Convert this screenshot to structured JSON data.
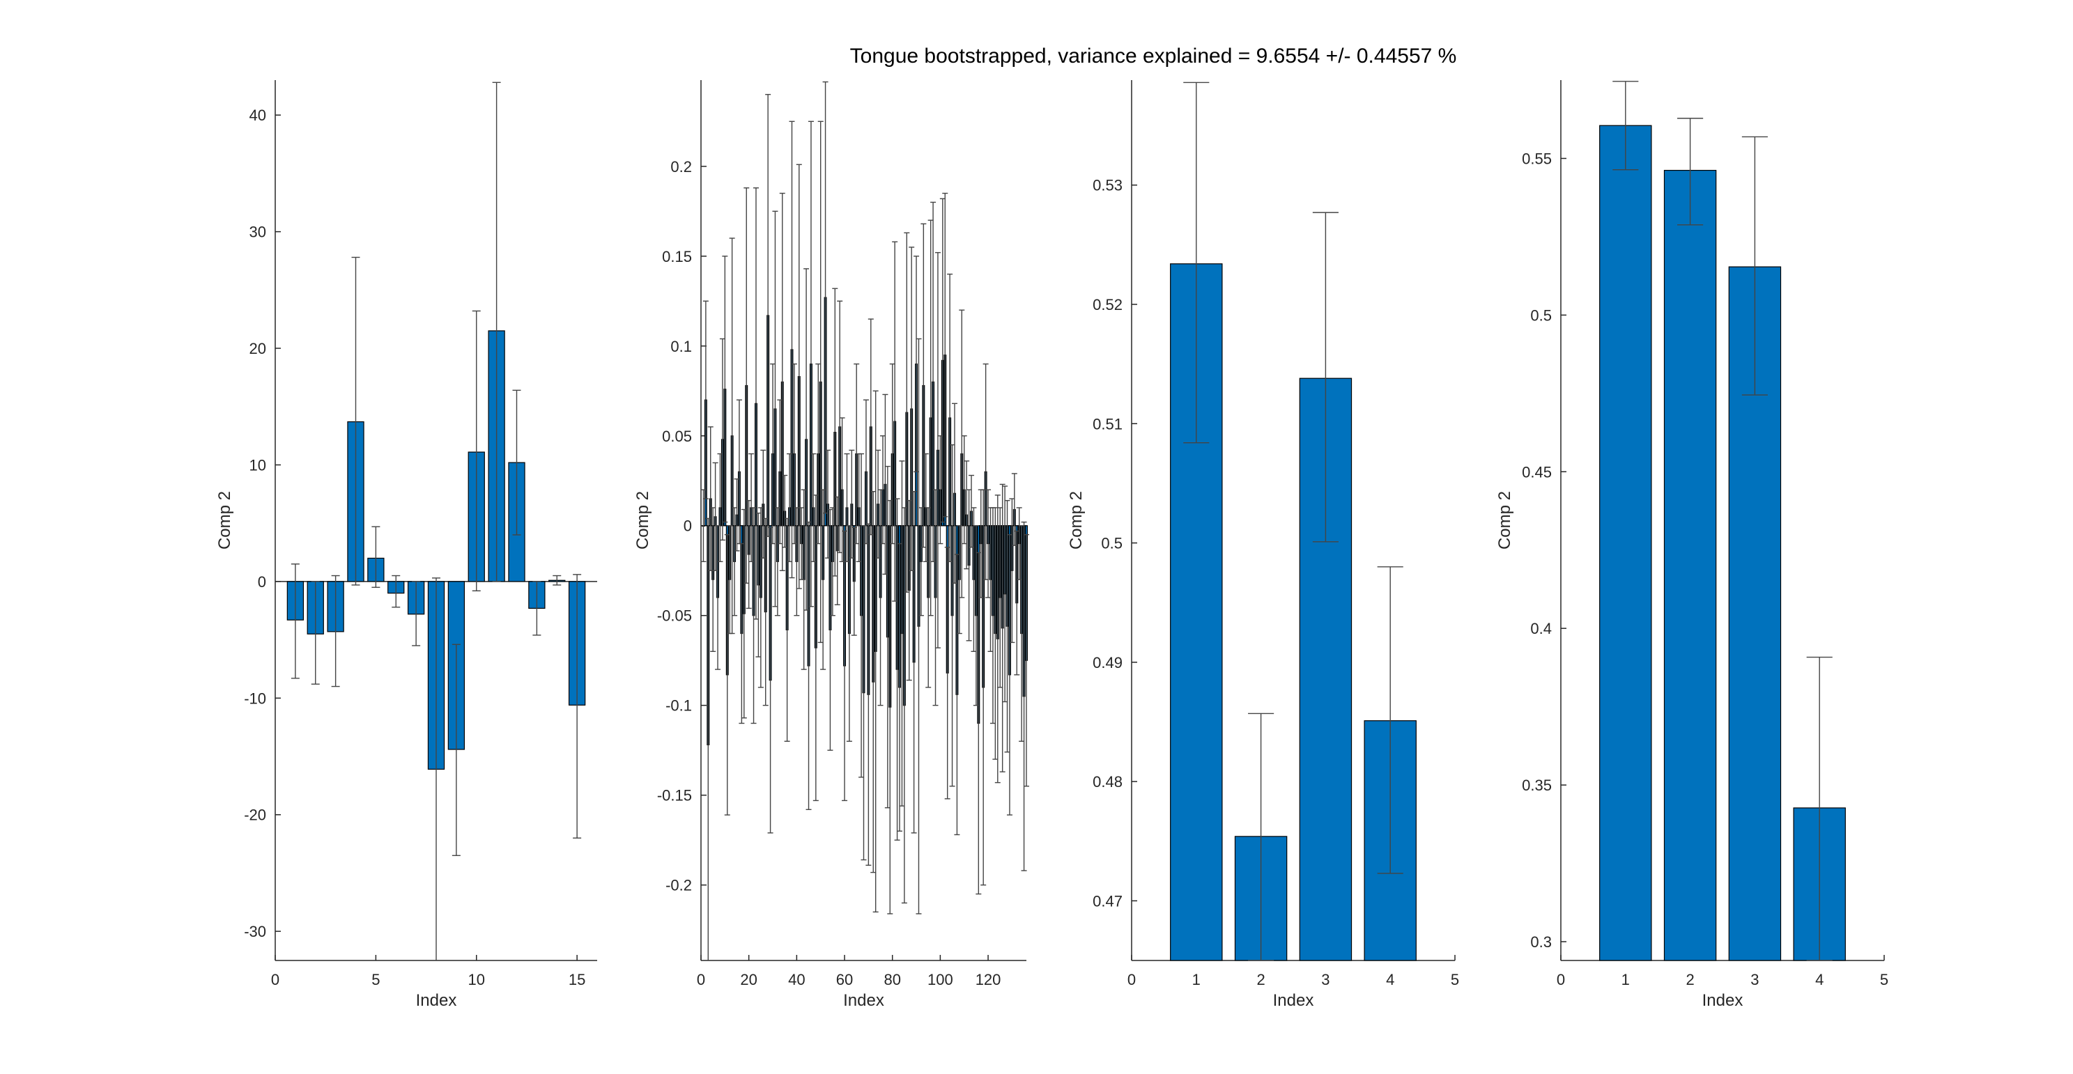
{
  "figure": {
    "title": "Tongue bootstrapped, variance explained = 9.6554 +/- 0.44557 %"
  },
  "chart_data": [
    {
      "type": "bar",
      "xlabel": "Index",
      "ylabel": "Comp 2",
      "xlim": [
        0,
        16
      ],
      "ylim": [
        -32.5,
        43
      ],
      "xticks": [
        0,
        5,
        10,
        15
      ],
      "yticks": [
        -30,
        -20,
        -10,
        0,
        10,
        20,
        30,
        40
      ],
      "x": [
        1,
        2,
        3,
        4,
        5,
        6,
        7,
        8,
        9,
        10,
        11,
        12,
        13,
        14,
        15
      ],
      "values": [
        -3.3,
        -4.5,
        -4.3,
        13.7,
        2.0,
        -1.0,
        -2.8,
        -16.1,
        -14.4,
        11.1,
        21.5,
        10.2,
        -2.3,
        0.1,
        -10.6
      ],
      "err_low": [
        -8.3,
        -8.8,
        -9.0,
        -0.3,
        -0.5,
        -2.2,
        -5.5,
        -32.5,
        -23.5,
        -0.8,
        0.0,
        4.0,
        -4.6,
        -0.3,
        -22.0
      ],
      "err_high": [
        1.5,
        0.0,
        0.5,
        27.8,
        4.7,
        0.5,
        0.0,
        0.3,
        -5.4,
        23.2,
        42.8,
        16.4,
        0.0,
        0.5,
        0.6
      ]
    },
    {
      "type": "bar",
      "xlabel": "Index",
      "ylabel": "Comp 2",
      "xlim": [
        0,
        136
      ],
      "ylim": [
        -0.242,
        0.248
      ],
      "xticks": [
        0,
        20,
        40,
        60,
        80,
        100,
        120
      ],
      "yticks": [
        -0.2,
        -0.15,
        -0.1,
        -0.05,
        0,
        0.05,
        0.1,
        0.15,
        0.2
      ],
      "values": [
        0.0,
        0.07,
        -0.122,
        0.015,
        -0.03,
        0.005,
        -0.04,
        0.01,
        0.048,
        0.076,
        -0.083,
        -0.03,
        0.05,
        -0.02,
        0.006,
        0.03,
        -0.06,
        -0.049,
        0.078,
        -0.016,
        0.01,
        -0.05,
        0.068,
        -0.033,
        -0.04,
        0.012,
        -0.048,
        0.117,
        -0.086,
        0.04,
        0.065,
        -0.02,
        0.03,
        0.08,
        0.008,
        -0.058,
        0.01,
        0.098,
        0.04,
        -0.02,
        0.083,
        -0.01,
        -0.03,
        0.048,
        -0.078,
        0.09,
        0.01,
        -0.068,
        0.04,
        0.08,
        -0.03,
        0.127,
        0.012,
        -0.058,
        -0.02,
        0.052,
        -0.014,
        0.055,
        0.02,
        -0.078,
        0.01,
        -0.06,
        0.012,
        -0.031,
        0.04,
        0.01,
        -0.05,
        -0.093,
        0.03,
        -0.094,
        0.055,
        -0.087,
        -0.07,
        0.012,
        -0.04,
        0.02,
        0.023,
        -0.062,
        -0.101,
        0.04,
        0.058,
        -0.08,
        -0.09,
        -0.06,
        -0.1,
        0.063,
        -0.036,
        0.065,
        -0.076,
        0.09,
        -0.056,
        -0.02,
        0.078,
        0.01,
        -0.04,
        0.06,
        0.08,
        -0.04,
        0.042,
        0.02,
        0.092,
        0.095,
        -0.082,
        0.06,
        -0.05,
        0.018,
        -0.094,
        -0.03,
        0.04,
        0.02,
        0.006,
        -0.022,
        0.008,
        -0.03,
        -0.05,
        -0.11,
        -0.01,
        -0.09,
        0.03,
        -0.01,
        -0.03,
        -0.05,
        -0.06,
        -0.063,
        -0.04,
        -0.057,
        -0.038,
        -0.056,
        -0.083,
        -0.025,
        0.009,
        -0.043,
        -0.01,
        -0.06,
        -0.095,
        -0.075
      ],
      "errors": [
        0.02,
        0.055,
        0.126,
        0.04,
        0.04,
        0.03,
        0.04,
        0.03,
        0.056,
        0.074,
        0.078,
        0.03,
        0.11,
        0.03,
        0.02,
        0.04,
        0.05,
        0.058,
        0.11,
        0.03,
        0.03,
        0.06,
        0.12,
        0.04,
        0.05,
        0.03,
        0.052,
        0.123,
        0.085,
        0.05,
        0.11,
        0.03,
        0.04,
        0.105,
        0.02,
        0.062,
        0.03,
        0.127,
        0.05,
        0.03,
        0.118,
        0.02,
        0.05,
        0.095,
        0.08,
        0.135,
        0.03,
        0.085,
        0.05,
        0.145,
        0.05,
        0.12,
        0.03,
        0.067,
        0.03,
        0.08,
        0.03,
        0.07,
        0.04,
        0.075,
        0.03,
        0.06,
        0.03,
        0.03,
        0.05,
        0.03,
        0.09,
        0.093,
        0.04,
        0.095,
        0.06,
        0.106,
        0.145,
        0.03,
        0.06,
        0.03,
        0.05,
        0.095,
        0.115,
        0.05,
        0.1,
        0.095,
        0.08,
        0.096,
        0.11,
        0.1,
        0.05,
        0.09,
        0.095,
        0.06,
        0.16,
        0.03,
        0.09,
        0.03,
        0.05,
        0.11,
        0.1,
        0.06,
        0.11,
        0.03,
        0.09,
        0.09,
        0.07,
        0.08,
        0.095,
        0.05,
        0.078,
        0.03,
        0.08,
        0.03,
        0.03,
        0.042,
        0.02,
        0.04,
        0.05,
        0.095,
        0.03,
        0.11,
        0.06,
        0.03,
        0.04,
        0.06,
        0.07,
        0.08,
        0.05,
        0.08,
        0.06,
        0.07,
        0.078,
        0.04,
        0.02,
        0.04,
        0.02,
        0.06,
        0.097,
        0.07
      ]
    },
    {
      "type": "bar",
      "xlabel": "Index",
      "ylabel": "Comp 2",
      "xlim": [
        0,
        5
      ],
      "ylim": [
        0.465,
        0.5388
      ],
      "xticks": [
        0,
        1,
        2,
        3,
        4,
        5
      ],
      "yticks": [
        0.47,
        0.48,
        0.49,
        0.5,
        0.51,
        0.52,
        0.53
      ],
      "x": [
        1,
        2,
        3,
        4
      ],
      "values": [
        0.5234,
        0.4754,
        0.5138,
        0.4851
      ],
      "err_low": [
        0.5084,
        0.465,
        0.5001,
        0.4723
      ],
      "err_high": [
        0.5386,
        0.4857,
        0.5277,
        0.498
      ]
    },
    {
      "type": "bar",
      "xlabel": "Index",
      "ylabel": "Comp 2",
      "xlim": [
        0,
        5
      ],
      "ylim": [
        0.294,
        0.575
      ],
      "xticks": [
        0,
        1,
        2,
        3,
        4,
        5
      ],
      "yticks": [
        0.3,
        0.35,
        0.4,
        0.45,
        0.5,
        0.55
      ],
      "x": [
        1,
        2,
        3,
        4
      ],
      "values": [
        0.5605,
        0.5462,
        0.5154,
        0.3427
      ],
      "err_low": [
        0.5464,
        0.5288,
        0.4745,
        0.294
      ],
      "err_high": [
        0.5746,
        0.5628,
        0.5569,
        0.3908
      ]
    }
  ]
}
